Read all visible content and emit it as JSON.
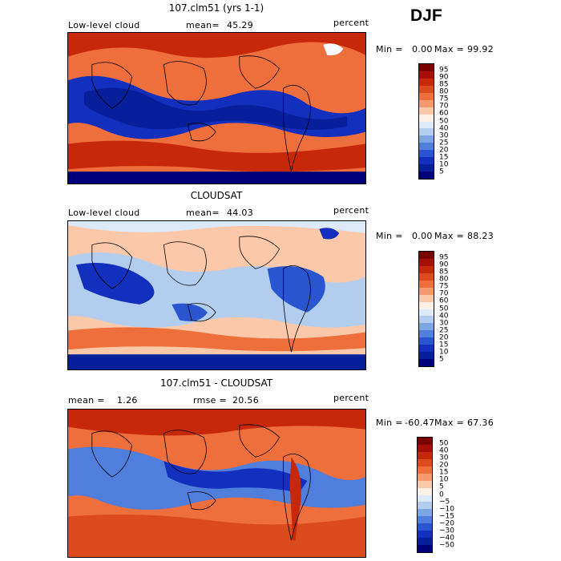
{
  "season": "DJF",
  "panels": [
    {
      "title": "107.clm51 (yrs 1-1)",
      "left_label": "Low-level cloud",
      "stat_label": "mean=",
      "stat_value": "45.29",
      "units": "percent",
      "min_label": "Min =",
      "min_value": "0.00",
      "max_label": "Max =",
      "max_value": "99.92",
      "map_type": "model",
      "colorbar": {
        "levels": [
          "95",
          "90",
          "85",
          "80",
          "75",
          "70",
          "60",
          "50",
          "40",
          "30",
          "25",
          "20",
          "15",
          "10",
          "5"
        ],
        "colors": [
          "#7a0000",
          "#a50f05",
          "#c8280a",
          "#dc4b1e",
          "#ee6e3c",
          "#f59a6e",
          "#fbc9aa",
          "#fdf0e6",
          "#dbe9f8",
          "#b3cdee",
          "#7ea6e4",
          "#4f7edc",
          "#2a55d0",
          "#1230bd",
          "#081f9c",
          "#00007a"
        ]
      }
    },
    {
      "title": "CLOUDSAT",
      "left_label": "Low-level cloud",
      "stat_label": "mean=",
      "stat_value": "44.03",
      "units": "percent",
      "min_label": "Min =",
      "min_value": "0.00",
      "max_label": "Max =",
      "max_value": "88.23",
      "map_type": "obs",
      "colorbar": {
        "levels": [
          "95",
          "90",
          "85",
          "80",
          "75",
          "70",
          "60",
          "50",
          "40",
          "30",
          "25",
          "20",
          "15",
          "10",
          "5"
        ],
        "colors": [
          "#7a0000",
          "#a50f05",
          "#c8280a",
          "#dc4b1e",
          "#ee6e3c",
          "#f59a6e",
          "#fbc9aa",
          "#fdf0e6",
          "#dbe9f8",
          "#b3cdee",
          "#7ea6e4",
          "#4f7edc",
          "#2a55d0",
          "#1230bd",
          "#081f9c",
          "#00007a"
        ]
      }
    },
    {
      "title": "107.clm51 - CLOUDSAT",
      "left_label": "mean =",
      "left_value": "1.26",
      "stat_label": "rmse =",
      "stat_value": "20.56",
      "units": "percent",
      "min_label": "Min = ",
      "min_value": "-60.47",
      "max_label": "Max =",
      "max_value": "67.36",
      "map_type": "diff",
      "colorbar": {
        "levels": [
          "50",
          "40",
          "30",
          "20",
          "15",
          "10",
          "5",
          "0",
          "−5",
          "−10",
          "−15",
          "−20",
          "−30",
          "−40",
          "−50"
        ],
        "colors": [
          "#7a0000",
          "#a50f05",
          "#c8280a",
          "#dc4b1e",
          "#ee6e3c",
          "#f59a6e",
          "#fbc9aa",
          "#fdf0e6",
          "#dbe9f8",
          "#b3cdee",
          "#7ea6e4",
          "#4f7edc",
          "#2a55d0",
          "#1230bd",
          "#081f9c",
          "#00007a"
        ]
      }
    }
  ]
}
